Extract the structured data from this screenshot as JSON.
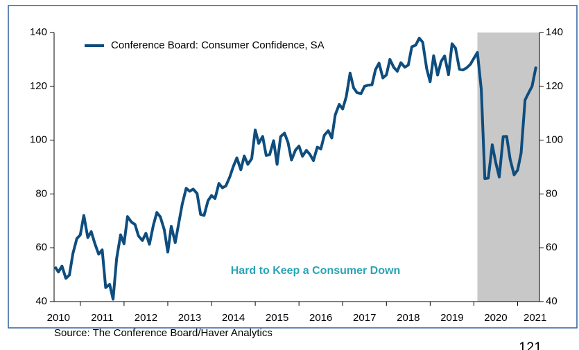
{
  "chart_data": {
    "type": "line",
    "series": [
      {
        "name": "Conference Board: Consumer Confidence, SA",
        "color": "#0e4d7e",
        "x": [
          2010.42,
          2010.5,
          2010.58,
          2010.67,
          2010.75,
          2010.83,
          2010.92,
          2011,
          2011.08,
          2011.17,
          2011.25,
          2011.33,
          2011.42,
          2011.5,
          2011.58,
          2011.67,
          2011.75,
          2011.83,
          2011.92,
          2012,
          2012.08,
          2012.17,
          2012.25,
          2012.33,
          2012.42,
          2012.5,
          2012.58,
          2012.67,
          2012.75,
          2012.83,
          2012.92,
          2013,
          2013.08,
          2013.17,
          2013.25,
          2013.33,
          2013.42,
          2013.5,
          2013.58,
          2013.67,
          2013.75,
          2013.83,
          2013.92,
          2014,
          2014.08,
          2014.17,
          2014.25,
          2014.33,
          2014.42,
          2014.5,
          2014.58,
          2014.67,
          2014.75,
          2014.83,
          2014.92,
          2015,
          2015.08,
          2015.17,
          2015.25,
          2015.33,
          2015.42,
          2015.5,
          2015.58,
          2015.67,
          2015.75,
          2015.83,
          2015.92,
          2016,
          2016.08,
          2016.17,
          2016.25,
          2016.33,
          2016.42,
          2016.5,
          2016.58,
          2016.67,
          2016.75,
          2016.83,
          2016.92,
          2017,
          2017.08,
          2017.17,
          2017.25,
          2017.33,
          2017.42,
          2017.5,
          2017.58,
          2017.67,
          2017.75,
          2017.83,
          2017.92,
          2018,
          2018.08,
          2018.17,
          2018.25,
          2018.33,
          2018.42,
          2018.5,
          2018.58,
          2018.67,
          2018.75,
          2018.83,
          2018.92,
          2019,
          2019.08,
          2019.17,
          2019.25,
          2019.33,
          2019.42,
          2019.5,
          2019.58,
          2019.67,
          2019.75,
          2019.83,
          2019.92,
          2020,
          2020.08,
          2020.17,
          2020.25,
          2020.33,
          2020.42,
          2020.5,
          2020.58,
          2020.67,
          2020.75,
          2020.83,
          2020.92,
          2021,
          2021.08,
          2021.17,
          2021.25,
          2021.33,
          2021.42
        ],
        "values": [
          52.9,
          51.0,
          53.2,
          48.6,
          49.9,
          57.8,
          63.4,
          64.8,
          72.0,
          63.8,
          66.0,
          61.7,
          57.6,
          59.2,
          45.2,
          46.4,
          40.9,
          56.0,
          64.8,
          61.5,
          71.6,
          69.5,
          68.7,
          64.4,
          62.7,
          65.4,
          61.3,
          68.4,
          73.1,
          71.5,
          66.7,
          58.4,
          68.0,
          61.9,
          69.0,
          76.2,
          82.1,
          81.0,
          81.8,
          80.2,
          72.4,
          72.0,
          77.5,
          79.4,
          78.3,
          83.9,
          82.3,
          83.0,
          86.4,
          90.3,
          93.4,
          89.0,
          94.1,
          91.0,
          93.1,
          103.8,
          98.8,
          101.4,
          94.3,
          94.6,
          99.8,
          91.0,
          101.3,
          102.6,
          99.1,
          92.6,
          96.3,
          97.8,
          94.0,
          96.2,
          94.7,
          92.4,
          97.4,
          96.7,
          101.8,
          103.5,
          100.8,
          109.4,
          113.3,
          111.6,
          116.1,
          124.9,
          119.4,
          117.6,
          117.3,
          120.0,
          120.4,
          120.6,
          126.2,
          128.6,
          123.1,
          124.3,
          130.0,
          127.0,
          125.6,
          128.8,
          127.1,
          127.9,
          134.7,
          135.3,
          137.9,
          136.4,
          126.6,
          121.7,
          131.4,
          124.2,
          129.2,
          131.3,
          124.3,
          135.8,
          134.2,
          126.3,
          126.1,
          126.8,
          128.2,
          130.4,
          132.6,
          118.8,
          85.7,
          85.9,
          98.3,
          91.7,
          86.3,
          101.3,
          101.4,
          92.9,
          87.1,
          88.9,
          95.2,
          114.9,
          117.5,
          120.0,
          127.3
        ]
      }
    ],
    "xlim": [
      2010.4,
      2021.5
    ],
    "xticks": [
      {
        "value": 2010.5,
        "label": "2010"
      },
      {
        "value": 2011.5,
        "label": "2011"
      },
      {
        "value": 2012.5,
        "label": "2012"
      },
      {
        "value": 2013.5,
        "label": "2013"
      },
      {
        "value": 2014.5,
        "label": "2014"
      },
      {
        "value": 2015.5,
        "label": "2015"
      },
      {
        "value": 2016.5,
        "label": "2016"
      },
      {
        "value": 2017.5,
        "label": "2017"
      },
      {
        "value": 2018.5,
        "label": "2018"
      },
      {
        "value": 2019.5,
        "label": "2019"
      },
      {
        "value": 2020.5,
        "label": "2020"
      },
      {
        "value": 2021.4,
        "label": "2021"
      }
    ],
    "xminorticks": [
      2011,
      2012,
      2013,
      2014,
      2015,
      2016,
      2017,
      2018,
      2019,
      2020,
      2021
    ],
    "ylim": [
      40,
      140
    ],
    "yticks": [
      40,
      60,
      80,
      100,
      120,
      140
    ],
    "y2lim": [
      40,
      140
    ],
    "y2ticks": [
      40,
      60,
      80,
      100,
      120,
      140
    ],
    "shaded_region": {
      "x": [
        2020.08,
        2021.5
      ],
      "color": "#c8c8c8"
    },
    "annotation": "Hard to Keep a Consumer Down",
    "source": "Source:  The Conference Board/Haver Analytics",
    "legend": "top-left",
    "grid": false
  },
  "page_number": "121"
}
